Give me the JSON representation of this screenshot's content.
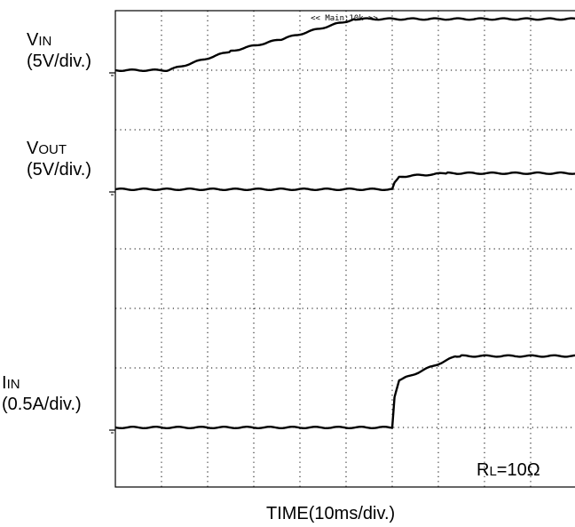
{
  "chart_data": {
    "type": "line",
    "title": "",
    "xlabel": "TIME(10ms/div.)",
    "x_unit": "ms",
    "x_divisions": 10,
    "y_divisions": 8,
    "grid": true,
    "header": "<< Main:10k >>",
    "annotation": {
      "main": "R",
      "sub": "L",
      "rest": "=10Ω"
    },
    "series": [
      {
        "name_main": "V",
        "name_sub": "IN",
        "scale": "(5V/div.)",
        "unit": "V",
        "ground_div": 1,
        "points": [
          [
            0,
            0
          ],
          [
            11.5,
            0
          ],
          [
            25,
            1.6
          ],
          [
            36,
            2.6
          ],
          [
            48,
            3.9
          ],
          [
            52,
            4.3
          ],
          [
            100,
            4.3
          ]
        ]
      },
      {
        "name_main": "V",
        "name_sub": "OUT",
        "scale": "(5V/div.)",
        "unit": "V",
        "ground_div": 3,
        "points": [
          [
            0,
            0
          ],
          [
            60,
            0
          ],
          [
            60.5,
            0.6
          ],
          [
            61.5,
            1.0
          ],
          [
            63,
            1.1
          ],
          [
            72,
            1.35
          ],
          [
            74,
            1.35
          ],
          [
            100,
            1.35
          ]
        ]
      },
      {
        "name_main": "I",
        "name_sub": "IN",
        "scale": "(0.5A/div.)",
        "unit": "A",
        "ground_div": 7,
        "points": [
          [
            0,
            0
          ],
          [
            60,
            0
          ],
          [
            60.5,
            0.25
          ],
          [
            61.5,
            0.4
          ],
          [
            63,
            0.42
          ],
          [
            74,
            0.6
          ],
          [
            75,
            0.6
          ],
          [
            100,
            0.6
          ]
        ]
      }
    ]
  }
}
